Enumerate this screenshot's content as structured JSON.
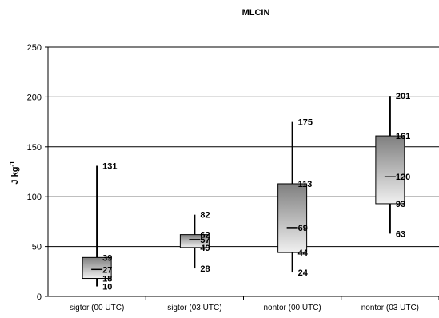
{
  "chart_data": {
    "type": "box",
    "title": "MLCIN",
    "ylabel_base": "J kg",
    "ylabel_exp": "-1",
    "ylim": [
      0,
      250
    ],
    "yticks": [
      "0",
      "50",
      "100",
      "150",
      "200",
      "250"
    ],
    "grid": true,
    "categories": [
      "sigtor (00 UTC)",
      "sigtor (03 UTC)",
      "nontor (00 UTC)",
      "nontor (03 UTC)"
    ],
    "boxes": [
      {
        "min": 10,
        "q1": 18,
        "median": 27,
        "q3": 39,
        "max": 131,
        "labels": [
          "131",
          "39",
          "27",
          "18",
          "10"
        ]
      },
      {
        "min": 28,
        "q1": 49,
        "median": 57,
        "q3": 62,
        "max": 82,
        "labels": [
          "82",
          "62",
          "57",
          "49",
          "28"
        ]
      },
      {
        "min": 24,
        "q1": 44,
        "median": 69,
        "q3": 113,
        "max": 175,
        "labels": [
          "175",
          "113",
          "69",
          "44",
          "24"
        ]
      },
      {
        "min": 63,
        "q1": 93,
        "median": 120,
        "q3": 161,
        "max": 201,
        "labels": [
          "201",
          "161",
          "120",
          "93",
          "63"
        ]
      }
    ]
  }
}
